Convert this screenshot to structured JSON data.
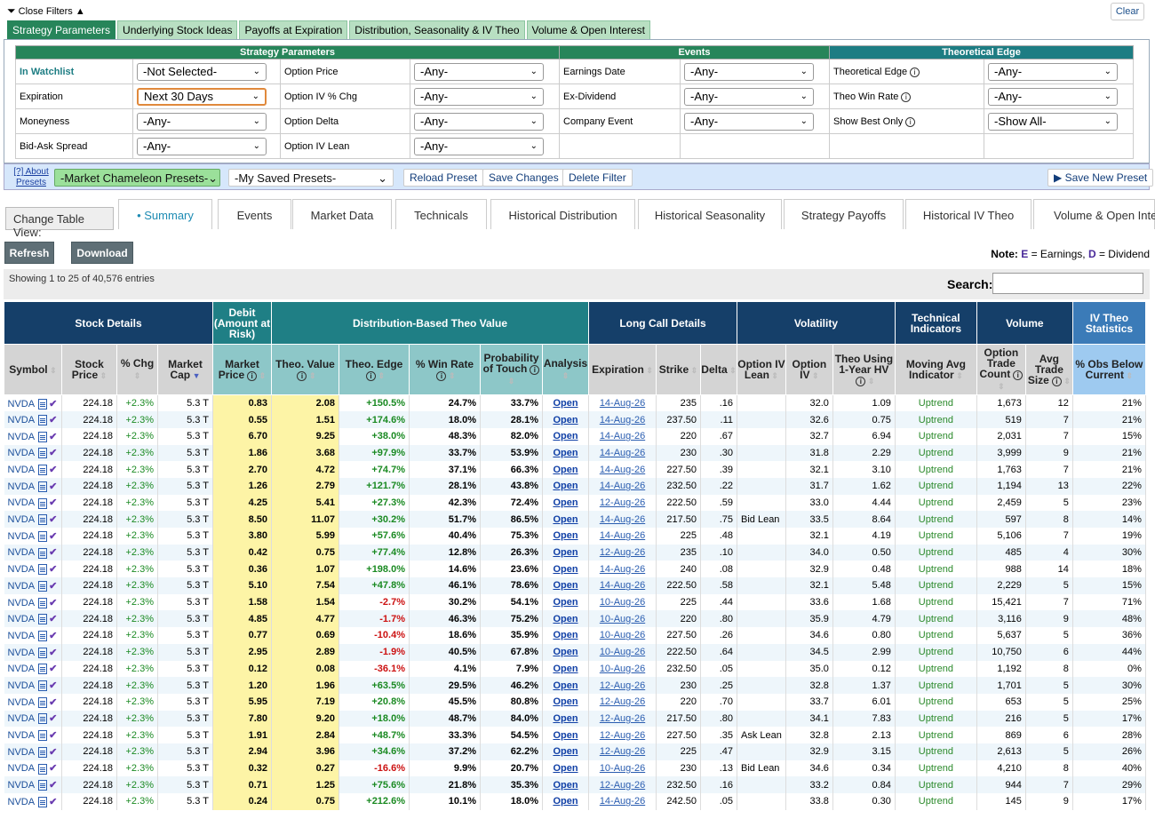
{
  "filters": {
    "close_label": "Close Filters",
    "close_arrow": "▲",
    "clear_label": "Clear",
    "tabs": [
      "Strategy Parameters",
      "Underlying Stock Ideas",
      "Payoffs at Expiration",
      "Distribution, Seasonality & IV Theo",
      "Volume & Open Interest"
    ],
    "groups": {
      "strategy": "Strategy Parameters",
      "events": "Events",
      "edge": "Theoretical Edge"
    },
    "rows": [
      [
        {
          "label": "In Watchlist",
          "value": "-Not Selected-"
        },
        {
          "label": "Option Price",
          "value": "-Any-"
        },
        {
          "label": "Earnings Date",
          "value": "-Any-"
        },
        {
          "label": "Theoretical Edge",
          "value": "-Any-"
        }
      ],
      [
        {
          "label": "Expiration",
          "value": "Next 30 Days"
        },
        {
          "label": "Option IV % Chg",
          "value": "-Any-"
        },
        {
          "label": "Ex-Dividend",
          "value": "-Any-"
        },
        {
          "label": "Theo Win Rate",
          "value": "-Any-"
        }
      ],
      [
        {
          "label": "Moneyness",
          "value": "-Any-"
        },
        {
          "label": "Option Delta",
          "value": "-Any-"
        },
        {
          "label": "Company Event",
          "value": "-Any-"
        },
        {
          "label": "Show Best Only",
          "value": "-Show All-"
        }
      ],
      [
        {
          "label": "Bid-Ask Spread",
          "value": "-Any-"
        },
        {
          "label": "Option IV Lean",
          "value": "-Any-"
        }
      ]
    ]
  },
  "presets": {
    "about": "[?] About Presets",
    "mc_presets": "-Market Chameleon Presets-",
    "saved": "-My Saved Presets-",
    "reload": "Reload Preset",
    "save_changes": "Save Changes",
    "delete": "Delete Filter",
    "save_new": "Save New Preset"
  },
  "table_view": {
    "label": "Change Table View:",
    "tabs": [
      "Summary",
      "Events",
      "Market Data",
      "Technicals",
      "Historical Distribution",
      "Historical Seasonality",
      "Strategy Payoffs",
      "Historical IV Theo",
      "Volume & Open Inte"
    ]
  },
  "actions": {
    "refresh": "Refresh",
    "download": "Download"
  },
  "note": {
    "prefix": "Note:",
    "e": "E",
    "e_text": " = Earnings, ",
    "d": "D",
    "d_text": " = Dividend"
  },
  "listing": {
    "showing": "Showing 1 to 25 of 40,576 entries",
    "search_label": "Search:"
  },
  "groups": [
    "Stock Details",
    "Debit (Amount at Risk)",
    "Distribution-Based Theo Value",
    "Long Call Details",
    "Volatility",
    "Technical Indicators",
    "Volume",
    "IV Theo Statistics"
  ],
  "columns": [
    "Symbol",
    "Stock Price",
    "% Chg",
    "Market Cap",
    "Market Price",
    "Theo. Value",
    "Theo. Edge",
    "% Win Rate",
    "Probability of Touch",
    "Analysis",
    "Expiration",
    "Strike",
    "Delta",
    "Option IV Lean",
    "Option IV",
    "Theo Using 1-Year HV",
    "Moving Avg Indicator",
    "Option Trade Count",
    "Avg Trade Size",
    "% Obs Below Current"
  ],
  "common": {
    "symbol": "NVDA",
    "price": "224.18",
    "chg": "+2.3%",
    "cap": "5.3 T",
    "analysis": "Open",
    "trend": "Uptrend"
  },
  "rows": [
    [
      "0.83",
      "2.08",
      "+150.5%",
      "24.7%",
      "33.7%",
      "14-Aug-26",
      "235",
      ".16",
      "",
      "32.0",
      "1.09",
      "1,673",
      "12",
      "21%"
    ],
    [
      "0.55",
      "1.51",
      "+174.6%",
      "18.0%",
      "28.1%",
      "14-Aug-26",
      "237.50",
      ".11",
      "",
      "32.6",
      "0.75",
      "519",
      "7",
      "21%"
    ],
    [
      "6.70",
      "9.25",
      "+38.0%",
      "48.3%",
      "82.0%",
      "14-Aug-26",
      "220",
      ".67",
      "",
      "32.7",
      "6.94",
      "2,031",
      "7",
      "15%"
    ],
    [
      "1.86",
      "3.68",
      "+97.9%",
      "33.7%",
      "53.9%",
      "14-Aug-26",
      "230",
      ".30",
      "",
      "31.8",
      "2.29",
      "3,999",
      "9",
      "21%"
    ],
    [
      "2.70",
      "4.72",
      "+74.7%",
      "37.1%",
      "66.3%",
      "14-Aug-26",
      "227.50",
      ".39",
      "",
      "32.1",
      "3.10",
      "1,763",
      "7",
      "21%"
    ],
    [
      "1.26",
      "2.79",
      "+121.7%",
      "28.1%",
      "43.8%",
      "14-Aug-26",
      "232.50",
      ".22",
      "",
      "31.7",
      "1.62",
      "1,194",
      "13",
      "22%"
    ],
    [
      "4.25",
      "5.41",
      "+27.3%",
      "42.3%",
      "72.4%",
      "12-Aug-26",
      "222.50",
      ".59",
      "",
      "33.0",
      "4.44",
      "2,459",
      "5",
      "23%"
    ],
    [
      "8.50",
      "11.07",
      "+30.2%",
      "51.7%",
      "86.5%",
      "14-Aug-26",
      "217.50",
      ".75",
      "Bid Lean",
      "33.5",
      "8.64",
      "597",
      "8",
      "14%"
    ],
    [
      "3.80",
      "5.99",
      "+57.6%",
      "40.4%",
      "75.3%",
      "14-Aug-26",
      "225",
      ".48",
      "",
      "32.1",
      "4.19",
      "5,106",
      "7",
      "19%"
    ],
    [
      "0.42",
      "0.75",
      "+77.4%",
      "12.8%",
      "26.3%",
      "12-Aug-26",
      "235",
      ".10",
      "",
      "34.0",
      "0.50",
      "485",
      "4",
      "30%"
    ],
    [
      "0.36",
      "1.07",
      "+198.0%",
      "14.6%",
      "23.6%",
      "14-Aug-26",
      "240",
      ".08",
      "",
      "32.9",
      "0.48",
      "988",
      "14",
      "18%"
    ],
    [
      "5.10",
      "7.54",
      "+47.8%",
      "46.1%",
      "78.6%",
      "14-Aug-26",
      "222.50",
      ".58",
      "",
      "32.1",
      "5.48",
      "2,229",
      "5",
      "15%"
    ],
    [
      "1.58",
      "1.54",
      "-2.7%",
      "30.2%",
      "54.1%",
      "10-Aug-26",
      "225",
      ".44",
      "",
      "33.6",
      "1.68",
      "15,421",
      "7",
      "71%"
    ],
    [
      "4.85",
      "4.77",
      "-1.7%",
      "46.3%",
      "75.2%",
      "10-Aug-26",
      "220",
      ".80",
      "",
      "35.9",
      "4.79",
      "3,116",
      "9",
      "48%"
    ],
    [
      "0.77",
      "0.69",
      "-10.4%",
      "18.6%",
      "35.9%",
      "10-Aug-26",
      "227.50",
      ".26",
      "",
      "34.6",
      "0.80",
      "5,637",
      "5",
      "36%"
    ],
    [
      "2.95",
      "2.89",
      "-1.9%",
      "40.5%",
      "67.8%",
      "10-Aug-26",
      "222.50",
      ".64",
      "",
      "34.5",
      "2.99",
      "10,750",
      "6",
      "44%"
    ],
    [
      "0.12",
      "0.08",
      "-36.1%",
      "4.1%",
      "7.9%",
      "10-Aug-26",
      "232.50",
      ".05",
      "",
      "35.0",
      "0.12",
      "1,192",
      "8",
      "0%"
    ],
    [
      "1.20",
      "1.96",
      "+63.5%",
      "29.5%",
      "46.2%",
      "12-Aug-26",
      "230",
      ".25",
      "",
      "32.8",
      "1.37",
      "1,701",
      "5",
      "30%"
    ],
    [
      "5.95",
      "7.19",
      "+20.8%",
      "45.5%",
      "80.8%",
      "12-Aug-26",
      "220",
      ".70",
      "",
      "33.7",
      "6.01",
      "653",
      "5",
      "25%"
    ],
    [
      "7.80",
      "9.20",
      "+18.0%",
      "48.7%",
      "84.0%",
      "12-Aug-26",
      "217.50",
      ".80",
      "",
      "34.1",
      "7.83",
      "216",
      "5",
      "17%"
    ],
    [
      "1.91",
      "2.84",
      "+48.7%",
      "33.3%",
      "54.5%",
      "12-Aug-26",
      "227.50",
      ".35",
      "Ask Lean",
      "32.8",
      "2.13",
      "869",
      "6",
      "28%"
    ],
    [
      "2.94",
      "3.96",
      "+34.6%",
      "37.2%",
      "62.2%",
      "12-Aug-26",
      "225",
      ".47",
      "",
      "32.9",
      "3.15",
      "2,613",
      "5",
      "26%"
    ],
    [
      "0.32",
      "0.27",
      "-16.6%",
      "9.9%",
      "20.7%",
      "10-Aug-26",
      "230",
      ".13",
      "Bid Lean",
      "34.6",
      "0.34",
      "4,210",
      "8",
      "40%"
    ],
    [
      "0.71",
      "1.25",
      "+75.6%",
      "21.8%",
      "35.3%",
      "12-Aug-26",
      "232.50",
      ".16",
      "",
      "33.2",
      "0.84",
      "944",
      "7",
      "29%"
    ],
    [
      "0.24",
      "0.75",
      "+212.6%",
      "10.1%",
      "18.0%",
      "14-Aug-26",
      "242.50",
      ".05",
      "",
      "33.8",
      "0.30",
      "145",
      "9",
      "17%"
    ]
  ]
}
